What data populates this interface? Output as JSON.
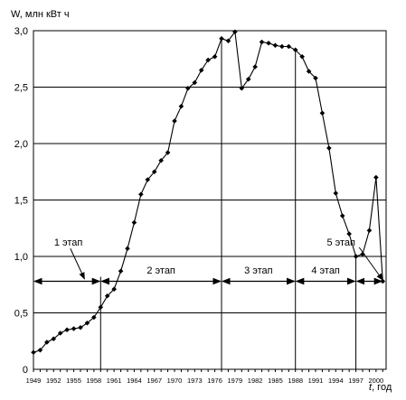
{
  "chart_data": {
    "type": "line",
    "ylabel": "W, млн кВт ч",
    "xlabel_symbol": "t",
    "xlabel_unit": ", год",
    "xlim": [
      1949,
      2002
    ],
    "ylim": [
      0,
      3.0
    ],
    "y_ticks": [
      "0",
      "0,5",
      "1,0",
      "1,5",
      "2,0",
      "2,5",
      "3,0"
    ],
    "x_tick_labels": [
      "1949",
      "1952",
      "1955",
      "1958",
      "1961",
      "1964",
      "1967",
      "1970",
      "1973",
      "1976",
      "1979",
      "1982",
      "1985",
      "1988",
      "1991",
      "1994",
      "1997",
      "2000"
    ],
    "grid": "horizontal",
    "series": [
      {
        "x": [
          1949,
          1950,
          1951,
          1952,
          1953,
          1954,
          1955,
          1956,
          1957,
          1958,
          1959,
          1960,
          1961,
          1962,
          1963,
          1964,
          1965,
          1966,
          1967,
          1968,
          1969,
          1970,
          1971,
          1972,
          1973,
          1974,
          1975,
          1976,
          1977,
          1978,
          1979,
          1980,
          1981,
          1982,
          1983,
          1984,
          1985,
          1986,
          1987,
          1988,
          1989,
          1990,
          1991,
          1992,
          1993,
          1994,
          1995,
          1996,
          1997,
          1998,
          1999,
          2000,
          2001
        ],
        "y": [
          0.15,
          0.17,
          0.24,
          0.27,
          0.32,
          0.35,
          0.36,
          0.37,
          0.41,
          0.46,
          0.55,
          0.65,
          0.71,
          0.87,
          1.07,
          1.3,
          1.55,
          1.68,
          1.75,
          1.85,
          1.92,
          2.2,
          2.33,
          2.49,
          2.54,
          2.65,
          2.74,
          2.77,
          2.93,
          2.91,
          2.99,
          2.49,
          2.57,
          2.68,
          2.9,
          2.89,
          2.87,
          2.86,
          2.86,
          2.83,
          2.77,
          2.64,
          2.58,
          2.27,
          1.96,
          1.56,
          1.36,
          1.2,
          1.0,
          1.02,
          1.23,
          1.7,
          0.78
        ]
      }
    ],
    "stage_boundaries": [
      1959,
      1977,
      1988,
      1997
    ],
    "stages": [
      {
        "label": "1 этап",
        "x_from": 1949,
        "x_to": 1959
      },
      {
        "label": "2 этап",
        "x_from": 1959,
        "x_to": 1977
      },
      {
        "label": "3 этап",
        "x_from": 1977,
        "x_to": 1988
      },
      {
        "label": "4 этап",
        "x_from": 1988,
        "x_to": 1997
      },
      {
        "label": "5 этап",
        "x_from": 1997,
        "x_to": 2001
      }
    ],
    "stage_arrow_level": 0.78
  }
}
